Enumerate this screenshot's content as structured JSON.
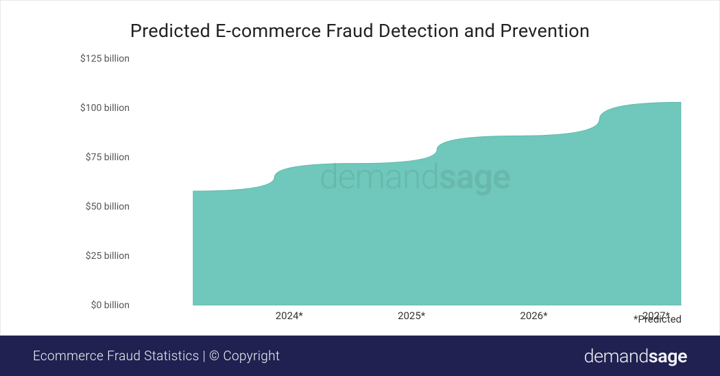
{
  "chart": {
    "type": "area",
    "title": "Predicted E-commerce Fraud Detection and Prevention",
    "title_fontsize": 27,
    "title_color": "#222222",
    "background_color": "#ffffff",
    "border_color": "#e8e8e8",
    "area_fill_color": "#6fc8bb",
    "area_fill_opacity": 1.0,
    "area_stroke_color": "#5fb8ab",
    "area_stroke_width": 1,
    "y_axis": {
      "min": 0,
      "max": 125,
      "tick_step": 25,
      "ticks": [
        {
          "value": 0,
          "label": "$0 billion"
        },
        {
          "value": 25,
          "label": "$25 billion"
        },
        {
          "value": 50,
          "label": "$50 billion"
        },
        {
          "value": 75,
          "label": "$75 billion"
        },
        {
          "value": 100,
          "label": "$100 billion"
        },
        {
          "value": 125,
          "label": "$125 billion"
        }
      ],
      "label_fontsize": 14,
      "label_color": "#555555"
    },
    "x_axis": {
      "categories": [
        "2024*",
        "2025*",
        "2026*",
        "2027*"
      ],
      "label_fontsize": 15,
      "label_color": "#333333"
    },
    "values": [
      58,
      72,
      86,
      103
    ],
    "note": "*Predicted",
    "note_fontsize": 15,
    "watermark": {
      "text_light": "demand",
      "text_bold": "sage",
      "opacity": 0.1,
      "fontsize": 50
    }
  },
  "footer": {
    "background_color": "#202151",
    "text_color": "#ffffff",
    "text": "Ecommerce Fraud Statistics  | © Copyright",
    "text_fontsize": 19,
    "logo_light": "demand",
    "logo_bold": "sage",
    "logo_fontsize": 27
  }
}
